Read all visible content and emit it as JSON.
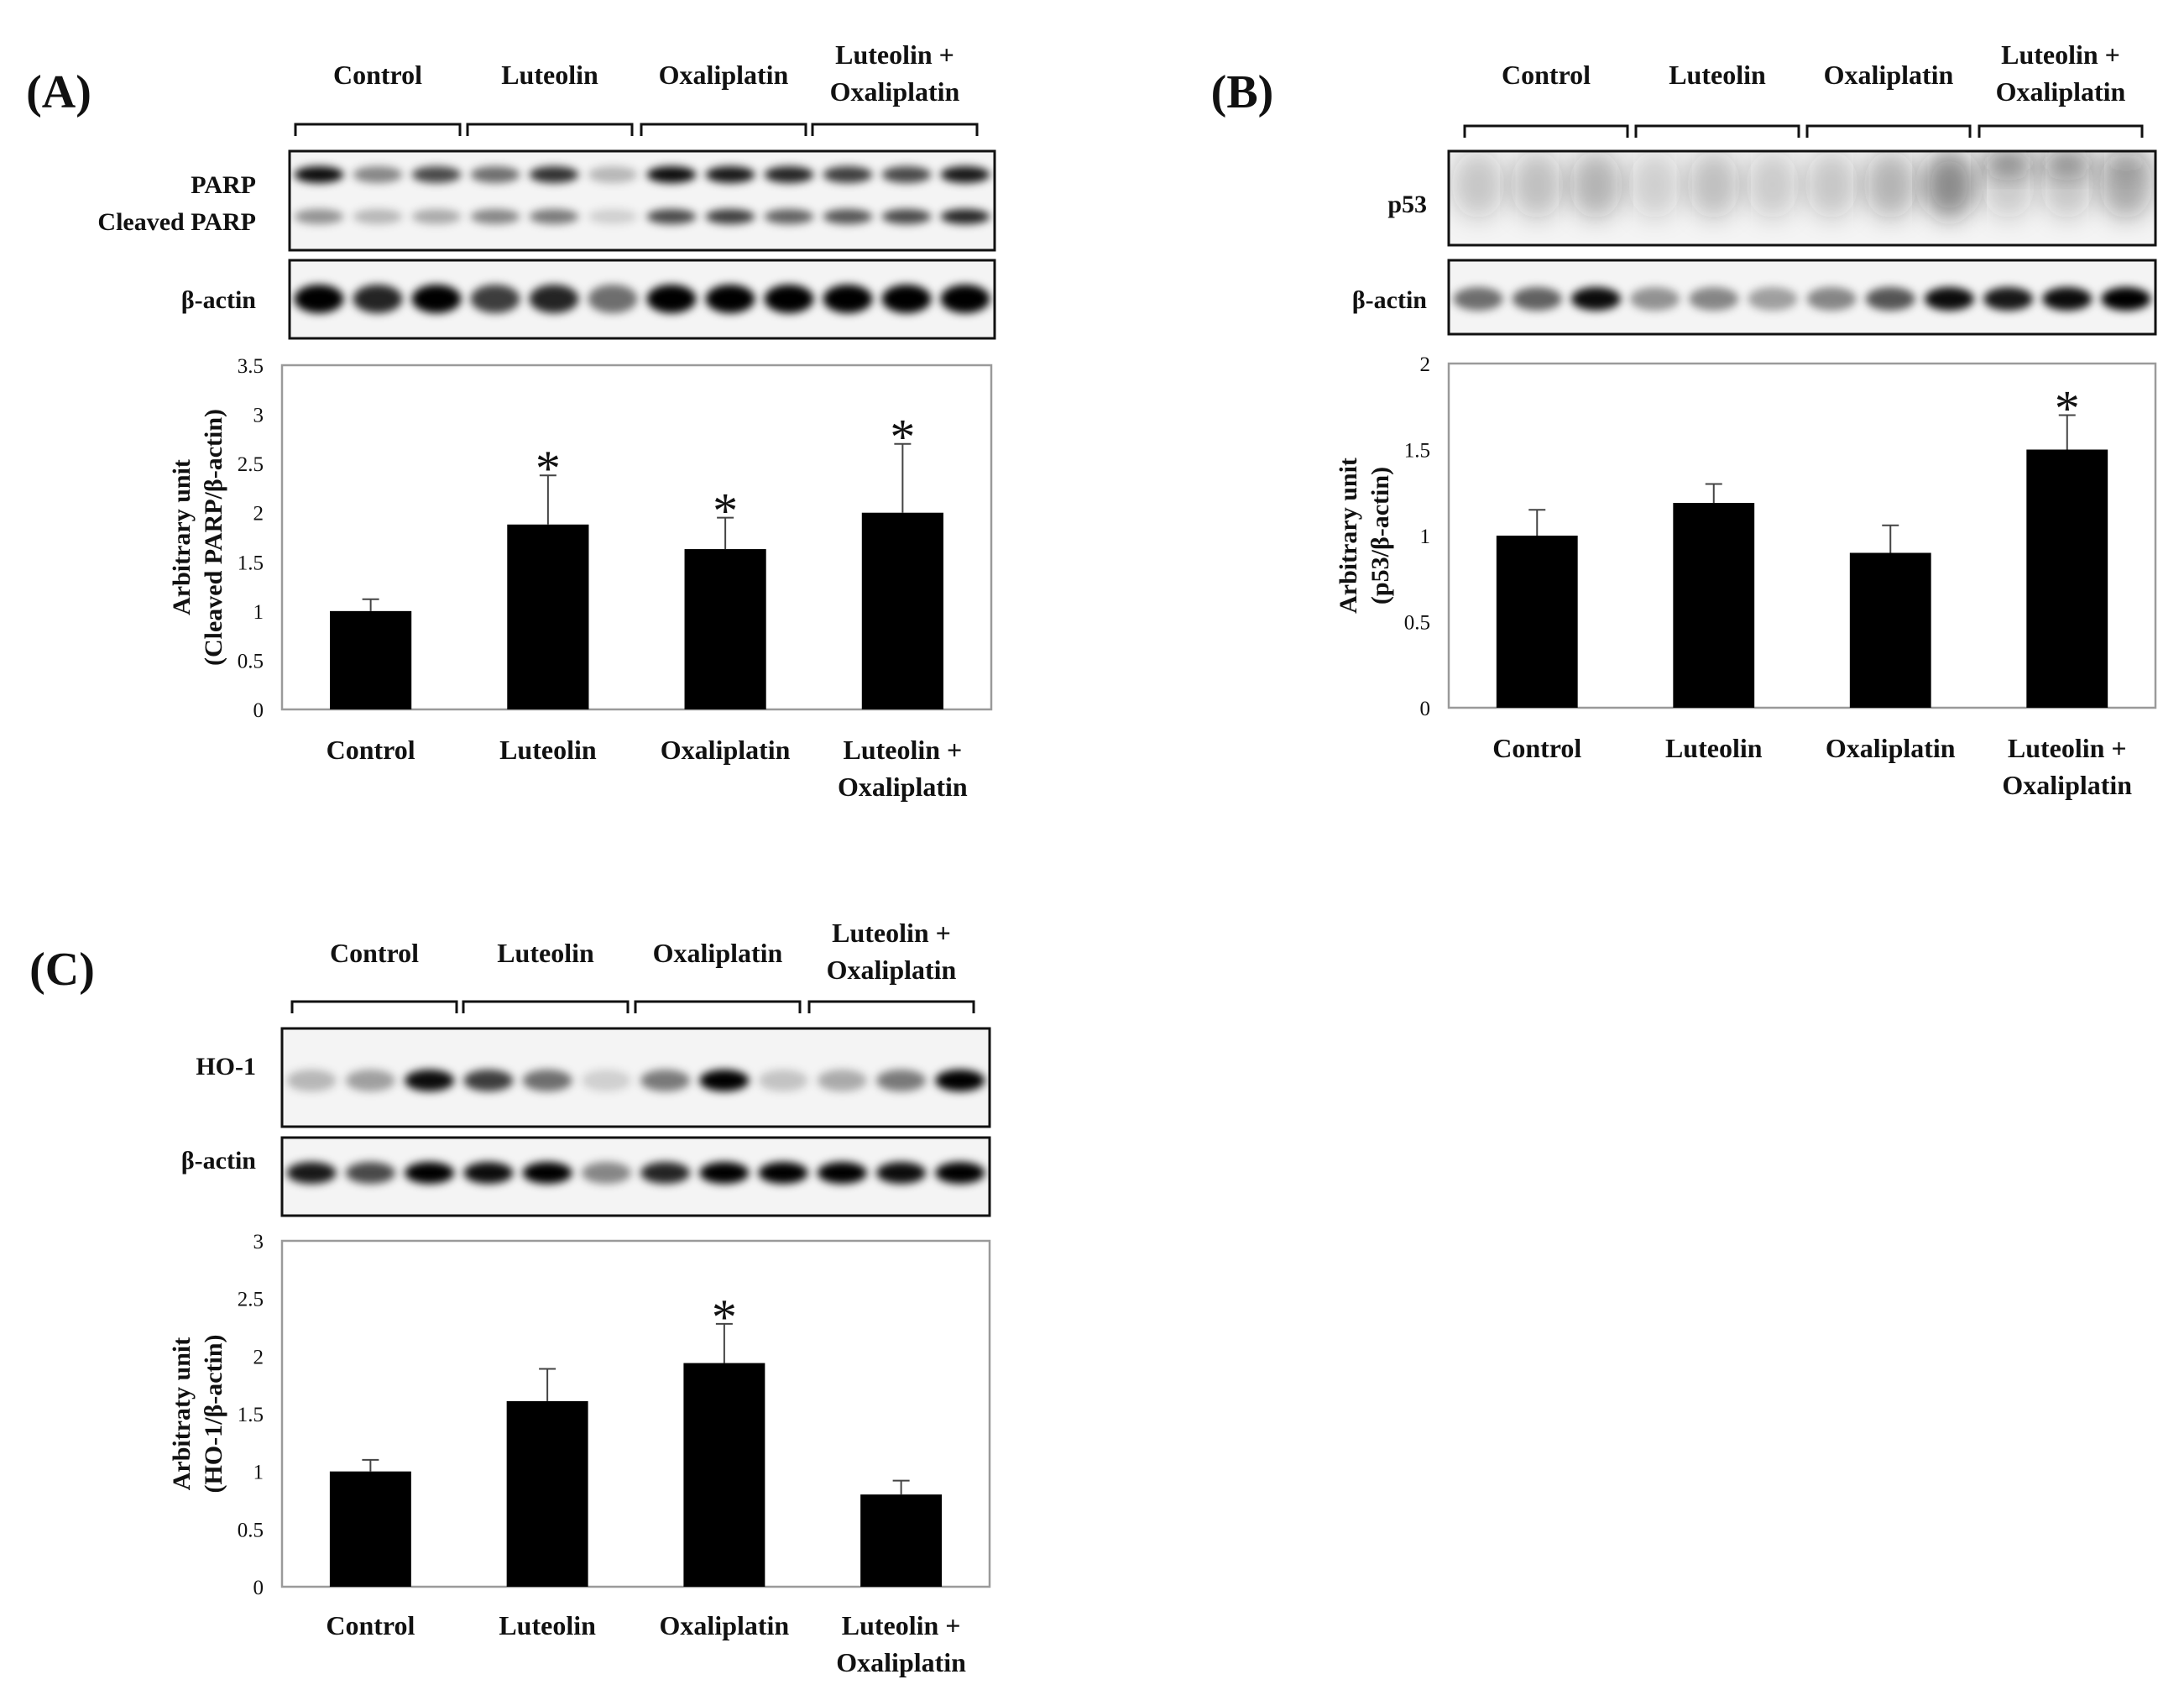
{
  "figure": {
    "panels": [
      {
        "id": "A",
        "label": "(A)",
        "groups": [
          [
            "Control"
          ],
          [
            "Luteolin"
          ],
          [
            "Oxaliplatin"
          ],
          [
            "Luteolin +",
            "Oxaliplatin"
          ]
        ],
        "blots": [
          {
            "labels": [
              "PARP",
              "Cleaved PARP"
            ],
            "kind": "parp"
          },
          {
            "labels": [
              "β-actin"
            ],
            "kind": "actin"
          }
        ]
      },
      {
        "id": "B",
        "label": "(B)",
        "groups": [
          [
            "Control"
          ],
          [
            "Luteolin"
          ],
          [
            "Oxaliplatin"
          ],
          [
            "Luteolin +",
            "Oxaliplatin"
          ]
        ],
        "blots": [
          {
            "labels": [
              "p53"
            ],
            "kind": "p53"
          },
          {
            "labels": [
              "β-actin"
            ],
            "kind": "actin2"
          }
        ]
      },
      {
        "id": "C",
        "label": "(C)",
        "groups": [
          [
            "Control"
          ],
          [
            "Luteolin"
          ],
          [
            "Oxaliplatin"
          ],
          [
            "Luteolin +",
            "Oxaliplatin"
          ]
        ],
        "blots": [
          {
            "labels": [
              "HO-1"
            ],
            "kind": "ho1"
          },
          {
            "labels": [
              "β-actin"
            ],
            "kind": "actin3"
          }
        ]
      }
    ]
  },
  "chart_data": [
    {
      "panel": "A",
      "type": "bar",
      "categories": [
        [
          "Control"
        ],
        [
          "Luteolin"
        ],
        [
          "Oxaliplatin"
        ],
        [
          "Luteolin +",
          "Oxaliplatin"
        ]
      ],
      "values": [
        1.0,
        1.88,
        1.63,
        2.0
      ],
      "errors": [
        0.12,
        0.5,
        0.32,
        0.7
      ],
      "significant": [
        false,
        true,
        true,
        true
      ],
      "significance_marker": "*",
      "ylabel": [
        "Arbitrary unit",
        "(Cleaved PARP/β-actin)"
      ],
      "ylim": [
        0,
        3.5
      ],
      "yticks": [
        0,
        0.5,
        1,
        1.5,
        2,
        2.5,
        3,
        3.5
      ],
      "ytick_labels": [
        "0",
        "0.5",
        "1",
        "1.5",
        "2",
        "2.5",
        "3",
        "3.5"
      ],
      "bar_color": "#000000"
    },
    {
      "panel": "B",
      "type": "bar",
      "categories": [
        [
          "Control"
        ],
        [
          "Luteolin"
        ],
        [
          "Oxaliplatin"
        ],
        [
          "Luteolin +",
          "Oxaliplatin"
        ]
      ],
      "values": [
        1.0,
        1.19,
        0.9,
        1.5
      ],
      "errors": [
        0.15,
        0.11,
        0.16,
        0.2
      ],
      "significant": [
        false,
        false,
        false,
        true
      ],
      "significance_marker": "*",
      "ylabel": [
        "Arbitrary unit",
        "(p53/β-actin)"
      ],
      "ylim": [
        0,
        2
      ],
      "yticks": [
        0,
        0.5,
        1,
        1.5,
        2
      ],
      "ytick_labels": [
        "0",
        "0.5",
        "1",
        "1.5",
        "2"
      ],
      "bar_color": "#000000"
    },
    {
      "panel": "C",
      "type": "bar",
      "categories": [
        [
          "Control"
        ],
        [
          "Luteolin"
        ],
        [
          "Oxaliplatin"
        ],
        [
          "Luteolin +",
          "Oxaliplatin"
        ]
      ],
      "values": [
        1.0,
        1.61,
        1.94,
        0.8
      ],
      "errors": [
        0.1,
        0.28,
        0.34,
        0.12
      ],
      "significant": [
        false,
        false,
        true,
        false
      ],
      "significance_marker": "*",
      "ylabel": [
        "Arbitraty unit",
        "(HO-1/β-actin)"
      ],
      "ylim": [
        0,
        3
      ],
      "yticks": [
        0,
        0.5,
        1,
        1.5,
        2,
        2.5,
        3
      ],
      "ytick_labels": [
        "0",
        "0.5",
        "1",
        "1.5",
        "2",
        "2.5",
        "3"
      ],
      "bar_color": "#000000"
    }
  ]
}
